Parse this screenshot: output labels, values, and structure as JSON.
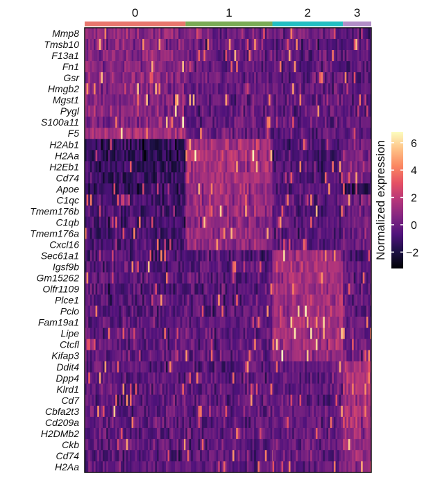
{
  "chart_data": {
    "type": "heatmap",
    "colormap": "magma",
    "clusters": [
      {
        "label": "0",
        "color": "#e8766d",
        "fraction": 0.352
      },
      {
        "label": "1",
        "color": "#7aab55",
        "fraction": 0.303
      },
      {
        "label": "2",
        "color": "#22bfc2",
        "fraction": 0.246
      },
      {
        "label": "3",
        "color": "#b28ec7",
        "fraction": 0.099
      }
    ],
    "genes": [
      "Mmp8",
      "Tmsb10",
      "F13a1",
      "Fn1",
      "Gsr",
      "Hmgb2",
      "Mgst1",
      "Pygl",
      "S100a11",
      "F5",
      "H2Ab1",
      "H2Aa",
      "H2Eb1",
      "Cd74",
      "Apoe",
      "C1qc",
      "Tmem176b",
      "C1qb",
      "Tmem176a",
      "Cxcl16",
      "Sec61a1",
      "Igsf9b",
      "Gm15262",
      "Olfr1109",
      "Plce1",
      "Pclo",
      "Fam19a1",
      "Lipe",
      "Ctcfl",
      "Kifap3",
      "Ddit4",
      "Dpp4",
      "Klrd1",
      "Cd7",
      "Cbfa2t3",
      "Cd209a",
      "H2DMb2",
      "Ckb",
      "Cd74",
      "H2Aa"
    ],
    "mean_expression": [
      [
        0.8,
        0.2,
        0.0,
        -0.3
      ],
      [
        0.6,
        0.0,
        -0.4,
        -0.3
      ],
      [
        0.7,
        -0.1,
        -0.2,
        -0.5
      ],
      [
        0.6,
        -0.2,
        -0.3,
        -0.4
      ],
      [
        0.6,
        0.0,
        -0.2,
        -0.6
      ],
      [
        0.7,
        -0.1,
        -0.3,
        -0.4
      ],
      [
        0.6,
        0.0,
        -0.1,
        -0.5
      ],
      [
        0.6,
        -0.2,
        -0.2,
        -0.7
      ],
      [
        0.7,
        0.0,
        -0.4,
        -0.2
      ],
      [
        1.3,
        -0.1,
        -0.3,
        -0.5
      ],
      [
        -1.5,
        1.6,
        -0.8,
        0.4
      ],
      [
        -1.5,
        1.6,
        -0.8,
        0.5
      ],
      [
        -1.3,
        1.5,
        -0.7,
        0.5
      ],
      [
        -1.2,
        1.4,
        -0.6,
        0.4
      ],
      [
        -1.4,
        1.2,
        -0.5,
        -1.5
      ],
      [
        -0.9,
        1.1,
        -0.4,
        0.2
      ],
      [
        -0.9,
        1.1,
        -0.6,
        0.3
      ],
      [
        -1.0,
        1.0,
        -0.4,
        0.1
      ],
      [
        -0.9,
        1.0,
        -0.5,
        0.2
      ],
      [
        -0.9,
        0.9,
        -0.4,
        0.0
      ],
      [
        -0.5,
        -0.6,
        1.2,
        -0.4
      ],
      [
        -0.4,
        -0.4,
        1.4,
        -0.3
      ],
      [
        -0.4,
        -0.4,
        1.3,
        -0.3
      ],
      [
        -0.5,
        -0.4,
        1.3,
        -0.2
      ],
      [
        -0.4,
        -0.4,
        1.4,
        -0.2
      ],
      [
        -0.4,
        -0.3,
        1.3,
        -0.2
      ],
      [
        -0.3,
        -0.3,
        1.6,
        -0.1
      ],
      [
        -0.3,
        -0.2,
        1.4,
        -0.2
      ],
      [
        -0.2,
        -0.3,
        1.3,
        -0.1
      ],
      [
        -0.2,
        -0.2,
        1.2,
        0.0
      ],
      [
        -0.3,
        -0.4,
        -0.2,
        1.8
      ],
      [
        -0.4,
        -0.3,
        -0.2,
        1.7
      ],
      [
        -0.3,
        -0.3,
        -0.2,
        1.6
      ],
      [
        -0.3,
        -0.2,
        -0.2,
        1.5
      ],
      [
        -0.2,
        -0.3,
        -0.1,
        1.4
      ],
      [
        -0.3,
        -0.3,
        -0.2,
        1.6
      ],
      [
        -0.2,
        -0.2,
        -0.1,
        1.3
      ],
      [
        -0.2,
        -0.3,
        -0.1,
        1.2
      ],
      [
        -0.4,
        -0.3,
        -0.2,
        1.1
      ],
      [
        -0.3,
        -0.3,
        -0.2,
        1.0
      ]
    ],
    "colorbar": {
      "title": "Normalized expression",
      "ticks": [
        -2,
        0,
        2,
        4,
        6
      ],
      "range": [
        -3.2,
        6.8
      ]
    }
  }
}
